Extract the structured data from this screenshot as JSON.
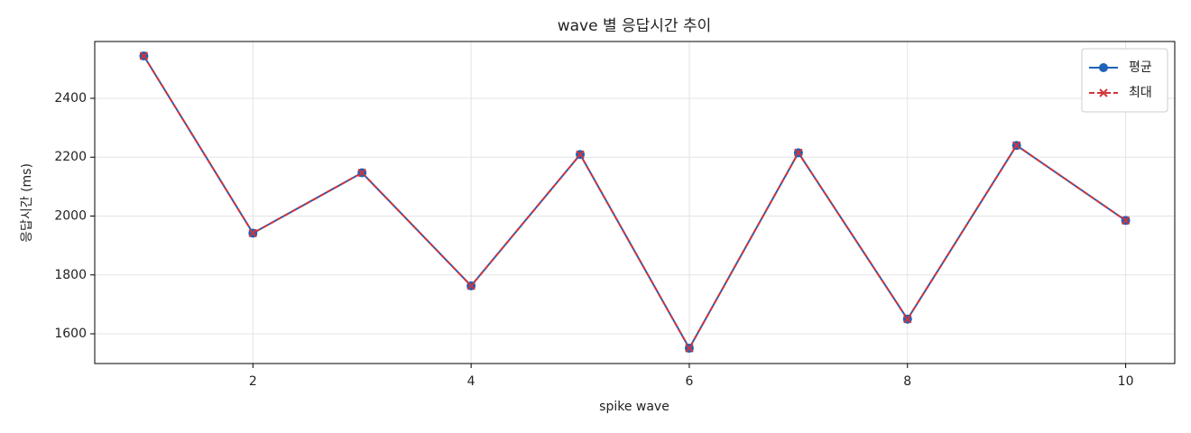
{
  "chart_data": {
    "type": "line",
    "title": "wave 별 응답시간 추이",
    "x_label": "spike wave",
    "y_label": "응답시간 (ms)",
    "x": [
      1,
      2,
      3,
      4,
      5,
      6,
      7,
      8,
      9,
      10
    ],
    "series": [
      {
        "name": "평균",
        "color": "#1f62b8",
        "marker": "o",
        "dash": false,
        "values": [
          2544,
          1942,
          2147,
          1763,
          2209,
          1551,
          2215,
          1650,
          2240,
          1985
        ]
      },
      {
        "name": "최대",
        "color": "#d3343a",
        "marker": "x",
        "dash": true,
        "values": [
          2544,
          1942,
          2147,
          1763,
          2209,
          1551,
          2215,
          1650,
          2240,
          1985
        ]
      }
    ],
    "xlim": [
      0.55,
      10.45
    ],
    "xticks": [
      2,
      4,
      6,
      8,
      10
    ],
    "ylim": [
      1499,
      2593
    ],
    "yticks": [
      1600,
      1800,
      2000,
      2200,
      2400
    ],
    "grid": true,
    "legend": "upper right"
  }
}
